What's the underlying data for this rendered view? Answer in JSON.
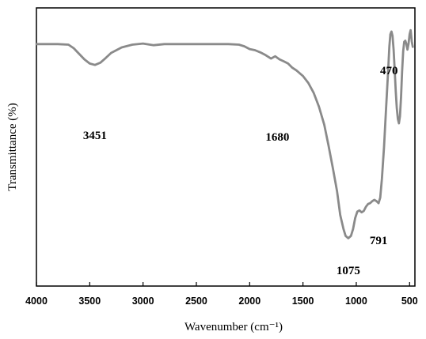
{
  "chart_data": {
    "type": "line",
    "title": "",
    "xlabel": "Wavenumber (cm⁻¹)",
    "ylabel": "Transmittance (%)",
    "xlim": [
      4000,
      450
    ],
    "x_reversed": true,
    "y_tick_labels_shown": false,
    "grid": false,
    "legend": "none",
    "x_ticks": [
      4000,
      3500,
      3000,
      2500,
      2000,
      1500,
      1000,
      500
    ],
    "line_color": "#8a8a8a",
    "series": [
      {
        "values": [
          [
            4000,
            0.87
          ],
          [
            3900,
            0.87
          ],
          [
            3800,
            0.87
          ],
          [
            3700,
            0.868
          ],
          [
            3650,
            0.855
          ],
          [
            3600,
            0.835
          ],
          [
            3550,
            0.815
          ],
          [
            3500,
            0.8
          ],
          [
            3451,
            0.795
          ],
          [
            3400,
            0.803
          ],
          [
            3350,
            0.82
          ],
          [
            3300,
            0.838
          ],
          [
            3200,
            0.858
          ],
          [
            3100,
            0.868
          ],
          [
            3000,
            0.872
          ],
          [
            2900,
            0.866
          ],
          [
            2800,
            0.87
          ],
          [
            2600,
            0.87
          ],
          [
            2400,
            0.87
          ],
          [
            2200,
            0.87
          ],
          [
            2100,
            0.868
          ],
          [
            2050,
            0.862
          ],
          [
            2000,
            0.852
          ],
          [
            1950,
            0.848
          ],
          [
            1900,
            0.84
          ],
          [
            1850,
            0.83
          ],
          [
            1800,
            0.818
          ],
          [
            1760,
            0.826
          ],
          [
            1720,
            0.815
          ],
          [
            1680,
            0.808
          ],
          [
            1640,
            0.8
          ],
          [
            1600,
            0.785
          ],
          [
            1560,
            0.775
          ],
          [
            1500,
            0.755
          ],
          [
            1450,
            0.73
          ],
          [
            1400,
            0.695
          ],
          [
            1350,
            0.645
          ],
          [
            1300,
            0.58
          ],
          [
            1260,
            0.505
          ],
          [
            1220,
            0.425
          ],
          [
            1180,
            0.34
          ],
          [
            1150,
            0.255
          ],
          [
            1120,
            0.205
          ],
          [
            1100,
            0.18
          ],
          [
            1075,
            0.172
          ],
          [
            1050,
            0.18
          ],
          [
            1030,
            0.205
          ],
          [
            1010,
            0.245
          ],
          [
            990,
            0.268
          ],
          [
            970,
            0.272
          ],
          [
            950,
            0.265
          ],
          [
            930,
            0.27
          ],
          [
            910,
            0.285
          ],
          [
            890,
            0.295
          ],
          [
            870,
            0.298
          ],
          [
            850,
            0.305
          ],
          [
            830,
            0.31
          ],
          [
            810,
            0.305
          ],
          [
            791,
            0.298
          ],
          [
            775,
            0.318
          ],
          [
            760,
            0.385
          ],
          [
            740,
            0.5
          ],
          [
            720,
            0.64
          ],
          [
            700,
            0.78
          ],
          [
            690,
            0.86
          ],
          [
            680,
            0.905
          ],
          [
            670,
            0.915
          ],
          [
            660,
            0.9
          ],
          [
            650,
            0.85
          ],
          [
            640,
            0.78
          ],
          [
            630,
            0.7
          ],
          [
            620,
            0.64
          ],
          [
            610,
            0.6
          ],
          [
            600,
            0.585
          ],
          [
            590,
            0.61
          ],
          [
            580,
            0.68
          ],
          [
            570,
            0.77
          ],
          [
            560,
            0.845
          ],
          [
            550,
            0.878
          ],
          [
            540,
            0.882
          ],
          [
            530,
            0.87
          ],
          [
            520,
            0.85
          ],
          [
            510,
            0.87
          ],
          [
            500,
            0.905
          ],
          [
            490,
            0.92
          ],
          [
            480,
            0.88
          ],
          [
            470,
            0.86
          ]
        ]
      }
    ],
    "annotations": [
      {
        "text": "3451",
        "x": 3451
      },
      {
        "text": "1680",
        "x": 1680
      },
      {
        "text": "1075",
        "x": 1075
      },
      {
        "text": "791",
        "x": 791
      },
      {
        "text": "470",
        "x": 470
      }
    ]
  }
}
